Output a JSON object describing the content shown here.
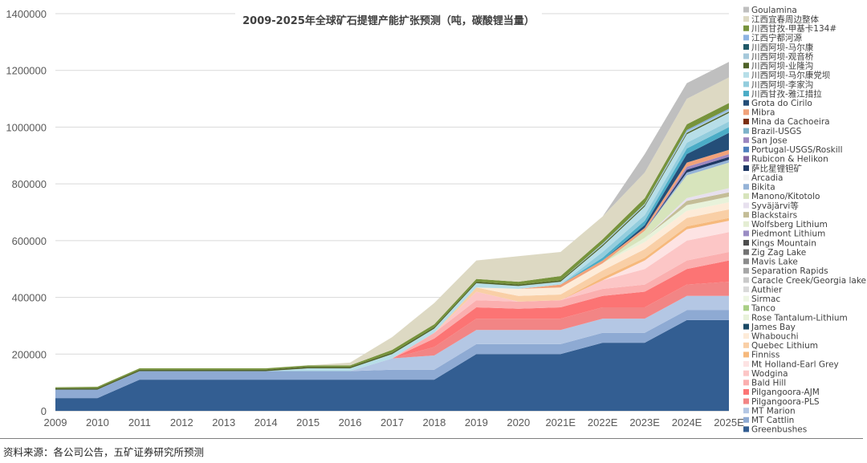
{
  "source_note": "资料来源：各公司公告，五矿证券研究所预测",
  "colors": {
    "Greenbushes": "#335E92",
    "MT Cattlin": "#8EAAD3",
    "MT Marion": "#B4C7E4",
    "Pilgangoora-PLS": "#F28585",
    "Pilgangoora-AJM": "#FC7474",
    "Bald Hill": "#FBAFAF",
    "Wodgina": "#FCC6C6",
    "Mt Holland-Earl Grey": "#FDE3E3",
    "Finniss": "#F6B97C",
    "Quebec Lithium": "#F9CFA6",
    "Whabouchi": "#FDEBD8",
    "James Bay": "#1C4A66",
    "Rose Tantalum-Lithium": "#E8F2DA",
    "Tanco": "#A9CF85",
    "Sirmac": "#EEF6E4",
    "Authier": "#D9D9D9",
    "Caracle Creek/Georgia lake": "#C9C9C9",
    "Separation Rapids": "#A6A6A6",
    "Mavis Lake": "#8C8C8C",
    "Zig Zag Lake": "#737373",
    "Kings Mountain": "#4D4D4D",
    "Piedmont Lithium": "#9A8CC4",
    "Wolfsberg Lithium": "#E4EDD3",
    "Blackstairs": "#C4BD97",
    "Syvajarvi": "#E7E0EE",
    "Manono/Kitotolo": "#D7E4BC",
    "Bikita": "#95B3D7",
    "Arcadia": "#F2F2F2",
    "Sabi Star": "#1F3864",
    "Rubicon & Helikon": "#8064A2",
    "Portugal-USGS/Roskill": "#4F81BD",
    "San Jose": "#9C87C0",
    "Brazil-USGS": "#7EB2C9",
    "Mina da Cachoeira": "#7B2E12",
    "Mibra": "#F1A27A",
    "Grota do Cirilo": "#244E78",
    "Yajiang Cuola": "#4BACC6",
    "Lijiagou": "#93CDDD",
    "Markang Dangba": "#B7DEE8",
    "Yelonggou": "#4F6228",
    "Guanyinqiao": "#A5C8DA",
    "Markang": "#215968",
    "Ningdu Heyuan": "#8DB3E2",
    "Jiajika-134": "#77933C",
    "Yichun": "#DDD9C3",
    "Goulamina": "#BFBFBF"
  },
  "chart_data": {
    "type": "area",
    "stacked": true,
    "title": "2009-2025年全球矿石提锂产能扩张预测（吨，碳酸锂当量）",
    "xlabel": "",
    "ylabel": "",
    "categories": [
      "2009",
      "2010",
      "2011",
      "2012",
      "2013",
      "2014",
      "2015",
      "2016",
      "2017",
      "2018",
      "2019",
      "2020",
      "2021E",
      "2022E",
      "2023E",
      "2024E",
      "2025E"
    ],
    "ylim": [
      0,
      1400000
    ],
    "yticks": [
      "0",
      "200000",
      "400000",
      "600000",
      "800000",
      "1000000",
      "1200000",
      "1400000"
    ],
    "grid": true,
    "legend_position": "right",
    "legend_order": [
      "Goulamina",
      "江西宜春周边整体",
      "川西甘孜-甲基卡134#",
      "江西宁都河源",
      "川西阿坝-马尔康",
      "川西阿坝-观音桥",
      "川西阿坝-业隆沟",
      "川西阿坝-马尔康党坝",
      "川西阿坝-李家沟",
      "川西甘孜-雅江措拉",
      "Grota do Cirilo",
      "Mibra",
      "Mina da Cachoeira",
      "Brazil-USGS",
      "San Jose",
      "Portugal-USGS/Roskill",
      "Rubicon & Helikon",
      "萨比星锂钽矿",
      "Arcadia",
      "Bikita",
      "Manono/Kitotolo",
      "Syväjärvi等",
      "Blackstairs",
      "Wolfsberg Lithium",
      "Piedmont Lithium",
      "Kings Mountain",
      "Zig Zag Lake",
      "Mavis Lake",
      "Separation Rapids",
      "Caracle Creek/Georgia lake",
      "Authier",
      "Sirmac",
      "Tanco",
      "Rose Tantalum-Lithium",
      "James Bay",
      "Whabouchi",
      "Quebec Lithium",
      "Finniss",
      "Mt Holland-Earl Grey",
      "Wodgina",
      "Bald Hill",
      "Pilgangoora-AJM",
      "Pilgangoora-PLS",
      "MT Marion",
      "MT Cattlin",
      "Greenbushes"
    ],
    "series": [
      {
        "name": "Greenbushes",
        "color_key": "Greenbushes",
        "values": [
          45000,
          45000,
          110000,
          110000,
          110000,
          110000,
          110000,
          110000,
          110000,
          110000,
          200000,
          200000,
          200000,
          240000,
          240000,
          320000,
          320000
        ]
      },
      {
        "name": "MT Cattlin",
        "color_key": "MT Cattlin",
        "values": [
          30000,
          30000,
          30000,
          30000,
          30000,
          30000,
          30000,
          30000,
          35000,
          35000,
          35000,
          35000,
          35000,
          35000,
          35000,
          35000,
          35000
        ]
      },
      {
        "name": "MT Marion",
        "color_key": "MT Marion",
        "values": [
          0,
          0,
          0,
          0,
          0,
          0,
          0,
          0,
          40000,
          50000,
          50000,
          50000,
          50000,
          50000,
          50000,
          50000,
          50000
        ]
      },
      {
        "name": "Pilgangoora-PLS",
        "color_key": "Pilgangoora-PLS",
        "values": [
          0,
          0,
          0,
          0,
          0,
          0,
          0,
          0,
          0,
          30000,
          40000,
          40000,
          40000,
          40000,
          40000,
          40000,
          50000
        ]
      },
      {
        "name": "Pilgangoora-AJM",
        "color_key": "Pilgangoora-AJM",
        "values": [
          0,
          0,
          0,
          0,
          0,
          0,
          0,
          0,
          0,
          30000,
          40000,
          35000,
          40000,
          40000,
          55000,
          55000,
          75000
        ]
      },
      {
        "name": "Bald Hill",
        "color_key": "Bald Hill",
        "values": [
          0,
          0,
          0,
          0,
          0,
          0,
          0,
          0,
          0,
          20000,
          25000,
          25000,
          25000,
          25000,
          25000,
          30000,
          30000
        ]
      },
      {
        "name": "Wodgina",
        "color_key": "Wodgina",
        "values": [
          0,
          0,
          0,
          0,
          0,
          0,
          0,
          0,
          0,
          0,
          30000,
          0,
          0,
          30000,
          55000,
          70000,
          70000
        ]
      },
      {
        "name": "Mt Holland-Earl Grey",
        "color_key": "Mt Holland-Earl Grey",
        "values": [
          0,
          0,
          0,
          0,
          0,
          0,
          0,
          0,
          0,
          0,
          0,
          0,
          0,
          0,
          30000,
          40000,
          40000
        ]
      },
      {
        "name": "Finniss",
        "color_key": "Finniss",
        "values": [
          0,
          0,
          0,
          0,
          0,
          0,
          0,
          0,
          0,
          0,
          0,
          0,
          0,
          10000,
          10000,
          10000,
          10000
        ]
      },
      {
        "name": "Quebec Lithium",
        "color_key": "Quebec Lithium",
        "values": [
          0,
          0,
          0,
          0,
          0,
          0,
          0,
          0,
          0,
          0,
          15000,
          20000,
          20000,
          25000,
          30000,
          30000,
          30000
        ]
      },
      {
        "name": "Whabouchi",
        "color_key": "Whabouchi",
        "values": [
          0,
          0,
          0,
          0,
          0,
          0,
          0,
          0,
          0,
          0,
          0,
          25000,
          25000,
          25000,
          25000,
          25000,
          25000
        ]
      },
      {
        "name": "James Bay",
        "color_key": "James Bay",
        "values": [
          0,
          0,
          0,
          0,
          0,
          0,
          0,
          0,
          0,
          0,
          0,
          0,
          0,
          0,
          0,
          0,
          0
        ]
      },
      {
        "name": "Rose Tantalum-Lithium",
        "color_key": "Rose Tantalum-Lithium",
        "values": [
          0,
          0,
          0,
          0,
          0,
          0,
          0,
          0,
          0,
          0,
          0,
          0,
          0,
          0,
          15000,
          20000,
          20000
        ]
      },
      {
        "name": "Tanco",
        "color_key": "Tanco",
        "values": [
          0,
          0,
          0,
          0,
          0,
          0,
          0,
          0,
          0,
          0,
          0,
          0,
          0,
          0,
          0,
          0,
          0
        ]
      },
      {
        "name": "Sirmac",
        "color_key": "Sirmac",
        "values": [
          0,
          0,
          0,
          0,
          0,
          0,
          0,
          0,
          0,
          0,
          0,
          0,
          0,
          0,
          0,
          0,
          0
        ]
      },
      {
        "name": "Authier",
        "color_key": "Authier",
        "values": [
          0,
          0,
          0,
          0,
          0,
          0,
          0,
          0,
          0,
          0,
          0,
          0,
          0,
          0,
          0,
          0,
          0
        ]
      },
      {
        "name": "Caracle Creek/Georgia lake",
        "color_key": "Caracle Creek/Georgia lake",
        "values": [
          0,
          0,
          0,
          0,
          0,
          0,
          0,
          0,
          0,
          0,
          0,
          0,
          0,
          0,
          0,
          0,
          0
        ]
      },
      {
        "name": "Separation Rapids",
        "color_key": "Separation Rapids",
        "values": [
          0,
          0,
          0,
          0,
          0,
          0,
          0,
          0,
          0,
          0,
          0,
          0,
          0,
          0,
          0,
          0,
          0
        ]
      },
      {
        "name": "Mavis Lake",
        "color_key": "Mavis Lake",
        "values": [
          0,
          0,
          0,
          0,
          0,
          0,
          0,
          0,
          0,
          0,
          0,
          0,
          0,
          0,
          0,
          0,
          0
        ]
      },
      {
        "name": "Zig Zag Lake",
        "color_key": "Zig Zag Lake",
        "values": [
          0,
          0,
          0,
          0,
          0,
          0,
          0,
          0,
          0,
          0,
          0,
          0,
          0,
          0,
          0,
          0,
          0
        ]
      },
      {
        "name": "Kings Mountain",
        "color_key": "Kings Mountain",
        "values": [
          0,
          0,
          0,
          0,
          0,
          0,
          0,
          0,
          0,
          0,
          0,
          0,
          0,
          0,
          0,
          0,
          0
        ]
      },
      {
        "name": "Piedmont Lithium",
        "color_key": "Piedmont Lithium",
        "values": [
          0,
          0,
          0,
          0,
          0,
          0,
          0,
          0,
          0,
          0,
          0,
          0,
          0,
          0,
          0,
          0,
          0
        ]
      },
      {
        "name": "Wolfsberg Lithium",
        "color_key": "Wolfsberg Lithium",
        "values": [
          0,
          0,
          0,
          0,
          0,
          0,
          0,
          0,
          0,
          0,
          0,
          0,
          0,
          0,
          0,
          0,
          0
        ]
      },
      {
        "name": "Blackstairs",
        "color_key": "Blackstairs",
        "values": [
          0,
          0,
          0,
          0,
          0,
          0,
          0,
          0,
          0,
          0,
          0,
          0,
          0,
          0,
          0,
          15000,
          15000
        ]
      },
      {
        "name": "Syväjärvi等",
        "color_key": "Syvajarvi",
        "values": [
          0,
          0,
          0,
          0,
          0,
          0,
          0,
          0,
          0,
          0,
          0,
          0,
          0,
          0,
          0,
          10000,
          15000
        ]
      },
      {
        "name": "Manono/Kitotolo",
        "color_key": "Manono/Kitotolo",
        "values": [
          0,
          0,
          0,
          0,
          0,
          0,
          0,
          0,
          0,
          0,
          0,
          0,
          0,
          0,
          25000,
          80000,
          90000
        ]
      },
      {
        "name": "Bikita",
        "color_key": "Bikita",
        "values": [
          0,
          0,
          0,
          0,
          0,
          0,
          0,
          0,
          0,
          0,
          0,
          0,
          0,
          0,
          0,
          10000,
          10000
        ]
      },
      {
        "name": "Arcadia",
        "color_key": "Arcadia",
        "values": [
          0,
          0,
          0,
          0,
          0,
          0,
          0,
          0,
          0,
          0,
          0,
          0,
          0,
          0,
          0,
          0,
          0
        ]
      },
      {
        "name": "萨比星锂钽矿",
        "color_key": "Sabi Star",
        "values": [
          0,
          0,
          0,
          0,
          0,
          0,
          0,
          0,
          0,
          0,
          0,
          0,
          0,
          0,
          0,
          10000,
          10000
        ]
      },
      {
        "name": "Rubicon & Helikon",
        "color_key": "Rubicon & Helikon",
        "values": [
          0,
          0,
          0,
          0,
          0,
          0,
          0,
          0,
          0,
          0,
          0,
          0,
          0,
          0,
          0,
          0,
          0
        ]
      },
      {
        "name": "Portugal-USGS/Roskill",
        "color_key": "Portugal-USGS/Roskill",
        "values": [
          0,
          0,
          0,
          0,
          0,
          0,
          0,
          0,
          0,
          0,
          0,
          0,
          0,
          0,
          0,
          0,
          0
        ]
      },
      {
        "name": "San Jose",
        "color_key": "San Jose",
        "values": [
          0,
          0,
          0,
          0,
          0,
          0,
          0,
          0,
          0,
          0,
          0,
          0,
          0,
          0,
          0,
          10000,
          10000
        ]
      },
      {
        "name": "Brazil-USGS",
        "color_key": "Brazil-USGS",
        "values": [
          0,
          0,
          0,
          0,
          0,
          0,
          0,
          0,
          0,
          0,
          0,
          0,
          0,
          0,
          0,
          0,
          0
        ]
      },
      {
        "name": "Mina da Cachoeira",
        "color_key": "Mina da Cachoeira",
        "values": [
          0,
          0,
          0,
          0,
          0,
          0,
          0,
          0,
          0,
          0,
          0,
          0,
          0,
          0,
          0,
          0,
          0
        ]
      },
      {
        "name": "Mibra",
        "color_key": "Mibra",
        "values": [
          0,
          0,
          0,
          0,
          0,
          0,
          0,
          0,
          0,
          0,
          0,
          0,
          10000,
          10000,
          10000,
          15000,
          15000
        ]
      },
      {
        "name": "Grota do Cirilo",
        "color_key": "Grota do Cirilo",
        "values": [
          0,
          0,
          0,
          0,
          0,
          0,
          0,
          0,
          0,
          0,
          0,
          0,
          0,
          0,
          10000,
          30000,
          60000
        ]
      },
      {
        "name": "川西甘孜-雅江措拉",
        "color_key": "Yajiang Cuola",
        "values": [
          0,
          0,
          0,
          0,
          0,
          0,
          0,
          0,
          0,
          0,
          0,
          0,
          0,
          10000,
          15000,
          20000,
          20000
        ]
      },
      {
        "name": "川西阿坝-李家沟",
        "color_key": "Lijiagou",
        "values": [
          0,
          0,
          0,
          0,
          0,
          0,
          0,
          0,
          0,
          0,
          0,
          0,
          0,
          20000,
          20000,
          20000,
          20000
        ]
      },
      {
        "name": "川西阿坝-马尔康党坝",
        "color_key": "Markang Dangba",
        "values": [
          0,
          0,
          0,
          0,
          0,
          0,
          10000,
          10000,
          15000,
          15000,
          15000,
          10000,
          10000,
          20000,
          30000,
          30000,
          30000
        ]
      },
      {
        "name": "川西阿坝-业隆沟",
        "color_key": "Yelonggou",
        "values": [
          5000,
          5000,
          5000,
          5000,
          5000,
          5000,
          5000,
          5000,
          5000,
          5000,
          5000,
          5000,
          5000,
          5000,
          5000,
          5000,
          5000
        ]
      },
      {
        "name": "川西阿坝-观音桥",
        "color_key": "Guanyinqiao",
        "values": [
          0,
          0,
          0,
          0,
          0,
          0,
          0,
          0,
          0,
          0,
          0,
          0,
          0,
          5000,
          5000,
          5000,
          5000
        ]
      },
      {
        "name": "川西阿坝-马尔康",
        "color_key": "Markang",
        "values": [
          0,
          0,
          0,
          0,
          0,
          0,
          0,
          0,
          0,
          0,
          0,
          0,
          0,
          0,
          0,
          0,
          0
        ]
      },
      {
        "name": "江西宁都河源",
        "color_key": "Ningdu Heyuan",
        "values": [
          0,
          0,
          0,
          0,
          0,
          0,
          0,
          0,
          0,
          0,
          0,
          0,
          0,
          0,
          0,
          5000,
          5000
        ]
      },
      {
        "name": "川西甘孜-甲基卡134#",
        "color_key": "Jiajika-134",
        "values": [
          3000,
          5000,
          5000,
          5000,
          5000,
          5000,
          5000,
          5000,
          10000,
          10000,
          10000,
          10000,
          15000,
          15000,
          20000,
          20000,
          20000
        ]
      },
      {
        "name": "江西宜春周边整体",
        "color_key": "Yichun",
        "values": [
          0,
          0,
          0,
          0,
          0,
          0,
          0,
          10000,
          45000,
          75000,
          65000,
          90000,
          85000,
          80000,
          90000,
          90000,
          90000
        ]
      },
      {
        "name": "Goulamina",
        "color_key": "Goulamina",
        "values": [
          0,
          0,
          0,
          0,
          0,
          0,
          0,
          0,
          0,
          0,
          0,
          0,
          0,
          0,
          65000,
          55000,
          55000
        ]
      }
    ]
  }
}
